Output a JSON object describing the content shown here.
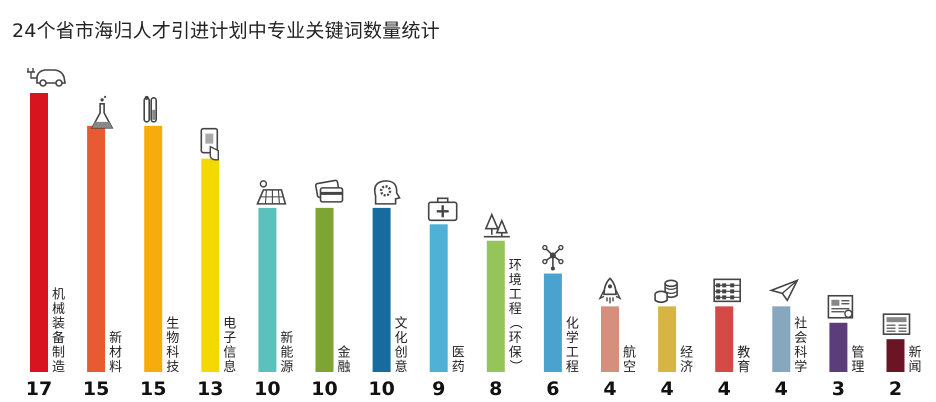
{
  "chart_data": {
    "type": "bar",
    "title": "24个省市海归人才引进计划中专业关键词数量统计",
    "xlabel": "",
    "ylabel": "",
    "ylim": [
      0,
      17
    ],
    "grid": false,
    "legend": "none",
    "categories": [
      "机械装备制造",
      "新材料",
      "生物科技",
      "电子信息",
      "新能源",
      "金融",
      "文化创意",
      "医药",
      "环境工程（环保）",
      "化学工程",
      "航空",
      "经济",
      "教育",
      "社会科学",
      "管理",
      "新闻"
    ],
    "values": [
      17,
      15,
      15,
      13,
      10,
      10,
      10,
      9,
      8,
      6,
      4,
      4,
      4,
      4,
      3,
      2
    ],
    "colors": [
      "#d7141f",
      "#e85b32",
      "#f5ac0c",
      "#f4d900",
      "#5cc1bd",
      "#7ea532",
      "#176b9e",
      "#4fb1d5",
      "#95c45b",
      "#4aa3cf",
      "#d58f7d",
      "#d7b444",
      "#d54a47",
      "#86a7bd",
      "#5b3d7b",
      "#6b1426"
    ],
    "icons": [
      "car-icon",
      "flask-icon",
      "test-tube-icon",
      "tablet-touch-icon",
      "solar-panel-icon",
      "credit-card-icon",
      "brain-gear-icon",
      "first-aid-kit-icon",
      "trees-icon",
      "chemical-molecule-icon",
      "rocket-icon",
      "coins-icon",
      "abacus-icon",
      "paper-plane-icon",
      "report-icon",
      "newspaper-icon"
    ]
  }
}
